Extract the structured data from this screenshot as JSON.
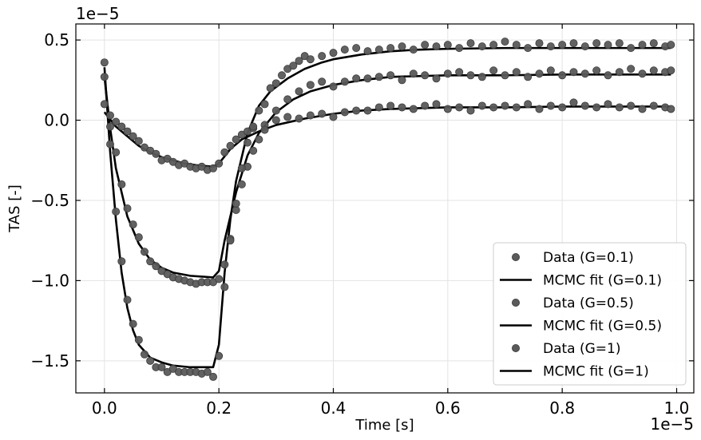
{
  "chart_data": {
    "type": "scatter",
    "title": "",
    "xlabel": "Time [s]",
    "ylabel": "TAS [-]",
    "x_offset_label": "1e−5",
    "y_offset_label": "1e−5",
    "xlim": [
      -0.05,
      1.03
    ],
    "ylim": [
      -1.7,
      0.6
    ],
    "x_ticks": [
      0.0,
      0.2,
      0.4,
      0.6,
      0.8,
      1.0
    ],
    "x_tick_labels": [
      "0.0",
      "0.2",
      "0.4",
      "0.6",
      "0.8",
      "1.0"
    ],
    "y_ticks": [
      0.5,
      0.0,
      -0.5,
      -1.0,
      -1.5
    ],
    "y_tick_labels": [
      "0.5",
      "0.0",
      "−0.5",
      "−1.0",
      "−1.5"
    ],
    "grid": true,
    "legend_position": "lower right",
    "colors": {
      "data_marker": "#5a5a5a",
      "fit_line": "#000000"
    },
    "series": [
      {
        "name": "Data (G=0.1)",
        "kind": "markers",
        "x": [
          0.0,
          0.01,
          0.02,
          0.03,
          0.04,
          0.05,
          0.06,
          0.07,
          0.08,
          0.09,
          0.1,
          0.11,
          0.12,
          0.13,
          0.14,
          0.15,
          0.16,
          0.17,
          0.18,
          0.19,
          0.2,
          0.21,
          0.22,
          0.23,
          0.24,
          0.25,
          0.26,
          0.28,
          0.3,
          0.32,
          0.34,
          0.36,
          0.38,
          0.4,
          0.42,
          0.44,
          0.46,
          0.48,
          0.5,
          0.52,
          0.54,
          0.56,
          0.58,
          0.6,
          0.62,
          0.64,
          0.66,
          0.68,
          0.7,
          0.72,
          0.74,
          0.76,
          0.78,
          0.8,
          0.82,
          0.84,
          0.86,
          0.88,
          0.9,
          0.92,
          0.94,
          0.96,
          0.98,
          0.99
        ],
        "y": [
          0.1,
          0.03,
          -0.01,
          -0.04,
          -0.07,
          -0.1,
          -0.13,
          -0.17,
          -0.19,
          -0.21,
          -0.25,
          -0.24,
          -0.26,
          -0.28,
          -0.27,
          -0.29,
          -0.3,
          -0.29,
          -0.31,
          -0.3,
          -0.27,
          -0.2,
          -0.16,
          -0.12,
          -0.09,
          -0.07,
          -0.05,
          -0.03,
          0.0,
          0.02,
          0.01,
          0.03,
          0.04,
          0.02,
          0.05,
          0.06,
          0.06,
          0.08,
          0.09,
          0.08,
          0.07,
          0.09,
          0.1,
          0.07,
          0.08,
          0.06,
          0.09,
          0.08,
          0.09,
          0.08,
          0.1,
          0.07,
          0.09,
          0.08,
          0.11,
          0.09,
          0.08,
          0.1,
          0.08,
          0.09,
          0.07,
          0.09,
          0.08,
          0.07
        ]
      },
      {
        "name": "MCMC fit (G=0.1)",
        "kind": "line",
        "x": [
          0.0,
          0.02,
          0.04,
          0.06,
          0.08,
          0.1,
          0.12,
          0.14,
          0.16,
          0.19,
          0.2,
          0.22,
          0.24,
          0.27,
          0.3,
          0.35,
          0.4,
          0.45,
          0.5,
          0.6,
          0.7,
          0.8,
          0.9,
          0.99
        ],
        "y": [
          0.05,
          -0.04,
          -0.1,
          -0.16,
          -0.2,
          -0.23,
          -0.25,
          -0.27,
          -0.28,
          -0.29,
          -0.27,
          -0.18,
          -0.12,
          -0.07,
          -0.03,
          0.01,
          0.04,
          0.06,
          0.07,
          0.08,
          0.08,
          0.085,
          0.085,
          0.085
        ]
      },
      {
        "name": "Data (G=0.5)",
        "kind": "markers",
        "x": [
          0.0,
          0.01,
          0.02,
          0.03,
          0.04,
          0.05,
          0.06,
          0.07,
          0.08,
          0.09,
          0.1,
          0.11,
          0.12,
          0.13,
          0.14,
          0.15,
          0.16,
          0.17,
          0.18,
          0.19,
          0.2,
          0.21,
          0.22,
          0.23,
          0.24,
          0.25,
          0.26,
          0.27,
          0.28,
          0.3,
          0.32,
          0.34,
          0.36,
          0.38,
          0.4,
          0.42,
          0.44,
          0.46,
          0.48,
          0.5,
          0.52,
          0.54,
          0.56,
          0.58,
          0.6,
          0.62,
          0.64,
          0.66,
          0.68,
          0.7,
          0.72,
          0.74,
          0.76,
          0.78,
          0.8,
          0.82,
          0.84,
          0.86,
          0.88,
          0.9,
          0.92,
          0.94,
          0.96,
          0.98,
          0.99
        ],
        "y": [
          0.27,
          -0.04,
          -0.2,
          -0.4,
          -0.55,
          -0.65,
          -0.73,
          -0.82,
          -0.88,
          -0.91,
          -0.94,
          -0.96,
          -0.98,
          -0.99,
          -1.0,
          -1.01,
          -1.02,
          -1.01,
          -1.01,
          -1.01,
          -0.99,
          -0.9,
          -0.74,
          -0.56,
          -0.4,
          -0.29,
          -0.19,
          -0.12,
          -0.06,
          0.06,
          0.13,
          0.18,
          0.22,
          0.24,
          0.21,
          0.24,
          0.26,
          0.26,
          0.27,
          0.28,
          0.25,
          0.29,
          0.28,
          0.26,
          0.29,
          0.3,
          0.28,
          0.27,
          0.31,
          0.28,
          0.3,
          0.27,
          0.29,
          0.31,
          0.28,
          0.3,
          0.29,
          0.31,
          0.28,
          0.3,
          0.32,
          0.29,
          0.31,
          0.3,
          0.31
        ]
      },
      {
        "name": "MCMC fit (G=0.5)",
        "kind": "line",
        "x": [
          0.0,
          0.01,
          0.02,
          0.04,
          0.06,
          0.08,
          0.1,
          0.12,
          0.15,
          0.19,
          0.2,
          0.21,
          0.23,
          0.25,
          0.27,
          0.3,
          0.33,
          0.36,
          0.4,
          0.45,
          0.5,
          0.6,
          0.7,
          0.8,
          0.9,
          0.99
        ],
        "y": [
          0.27,
          -0.05,
          -0.3,
          -0.6,
          -0.77,
          -0.87,
          -0.92,
          -0.95,
          -0.97,
          -0.98,
          -0.94,
          -0.75,
          -0.45,
          -0.22,
          -0.08,
          0.05,
          0.13,
          0.18,
          0.22,
          0.25,
          0.27,
          0.28,
          0.28,
          0.285,
          0.285,
          0.285
        ]
      },
      {
        "name": "Data (G=1)",
        "kind": "markers",
        "x": [
          0.0,
          0.01,
          0.02,
          0.03,
          0.04,
          0.05,
          0.06,
          0.07,
          0.08,
          0.09,
          0.1,
          0.11,
          0.12,
          0.13,
          0.14,
          0.15,
          0.16,
          0.17,
          0.18,
          0.19,
          0.2,
          0.21,
          0.22,
          0.23,
          0.24,
          0.25,
          0.26,
          0.27,
          0.28,
          0.29,
          0.3,
          0.31,
          0.32,
          0.33,
          0.34,
          0.35,
          0.36,
          0.38,
          0.4,
          0.42,
          0.44,
          0.46,
          0.48,
          0.5,
          0.52,
          0.54,
          0.56,
          0.58,
          0.6,
          0.62,
          0.64,
          0.66,
          0.68,
          0.7,
          0.72,
          0.74,
          0.76,
          0.78,
          0.8,
          0.82,
          0.84,
          0.86,
          0.88,
          0.9,
          0.92,
          0.94,
          0.96,
          0.98,
          0.99
        ],
        "y": [
          0.36,
          -0.15,
          -0.57,
          -0.88,
          -1.12,
          -1.27,
          -1.37,
          -1.46,
          -1.5,
          -1.54,
          -1.54,
          -1.57,
          -1.55,
          -1.57,
          -1.57,
          -1.57,
          -1.57,
          -1.58,
          -1.57,
          -1.6,
          -1.47,
          -1.04,
          -0.75,
          -0.52,
          -0.3,
          -0.14,
          -0.04,
          0.06,
          0.1,
          0.2,
          0.23,
          0.28,
          0.32,
          0.34,
          0.37,
          0.4,
          0.38,
          0.4,
          0.42,
          0.44,
          0.45,
          0.43,
          0.44,
          0.45,
          0.46,
          0.44,
          0.47,
          0.46,
          0.47,
          0.45,
          0.48,
          0.46,
          0.47,
          0.49,
          0.47,
          0.45,
          0.48,
          0.46,
          0.47,
          0.48,
          0.46,
          0.48,
          0.47,
          0.48,
          0.45,
          0.47,
          0.48,
          0.46,
          0.47
        ]
      },
      {
        "name": "MCMC fit (G=1)",
        "kind": "line",
        "x": [
          0.0,
          0.01,
          0.02,
          0.03,
          0.04,
          0.05,
          0.06,
          0.08,
          0.1,
          0.12,
          0.15,
          0.19,
          0.2,
          0.21,
          0.22,
          0.23,
          0.25,
          0.27,
          0.29,
          0.32,
          0.35,
          0.38,
          0.4,
          0.45,
          0.5,
          0.55,
          0.6,
          0.7,
          0.8,
          0.9,
          0.99
        ],
        "y": [
          0.33,
          -0.2,
          -0.62,
          -0.95,
          -1.17,
          -1.31,
          -1.4,
          -1.48,
          -1.51,
          -1.53,
          -1.54,
          -1.54,
          -1.4,
          -0.95,
          -0.62,
          -0.38,
          -0.08,
          0.09,
          0.18,
          0.26,
          0.32,
          0.36,
          0.38,
          0.41,
          0.43,
          0.44,
          0.445,
          0.45,
          0.45,
          0.45,
          0.45
        ]
      }
    ]
  }
}
